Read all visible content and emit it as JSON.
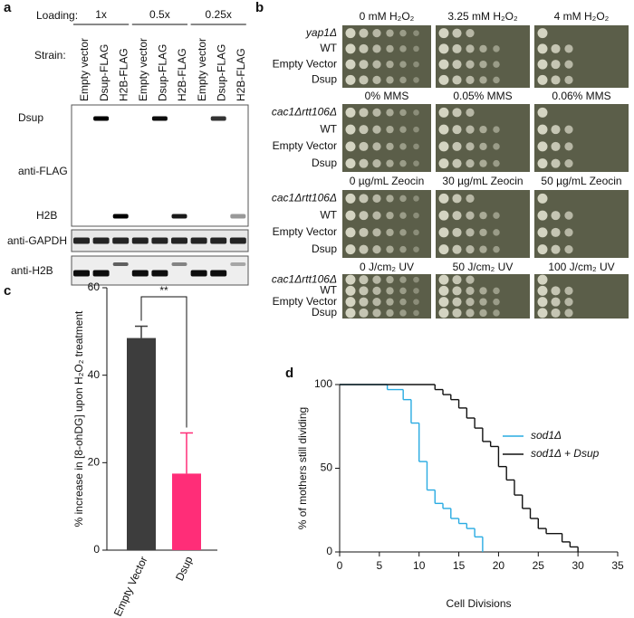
{
  "panel_a": {
    "label": "a",
    "loading_label": "Loading:",
    "loading": [
      "1x",
      "0.5x",
      "0.25x"
    ],
    "strain_label": "Strain:",
    "lanes": [
      "Empty vector",
      "Dsup-FLAG",
      "H2B-FLAG",
      "Empty vector",
      "Dsup-FLAG",
      "H2B-FLAG",
      "Empty vector",
      "Dsup-FLAG",
      "H2B-FLAG"
    ],
    "blots": [
      {
        "label": "anti-FLAG",
        "bands": [
          "Dsup",
          "H2B"
        ]
      },
      {
        "label": "anti-GAPDH"
      },
      {
        "label": "anti-H2B"
      }
    ]
  },
  "panel_b": {
    "label": "b",
    "sets": [
      {
        "columns": [
          "0 mM H₂O₂",
          "3.25 mM H₂O₂",
          "4 mM H₂O₂"
        ],
        "strains": [
          "yap1Δ",
          "WT",
          "Empty Vector",
          "Dsup"
        ]
      },
      {
        "columns": [
          "0% MMS",
          "0.05% MMS",
          "0.06% MMS"
        ],
        "strains": [
          "cac1Δrtt106Δ",
          "WT",
          "Empty Vector",
          "Dsup"
        ]
      },
      {
        "columns": [
          "0 µg/mL Zeocin",
          "30 µg/mL Zeocin",
          "50 µg/mL Zeocin"
        ],
        "strains": [
          "cac1Δrtt106Δ",
          "WT",
          "Empty Vector",
          "Dsup"
        ]
      },
      {
        "columns": [
          "0 J/cm₂ UV",
          "50 J/cm₂ UV",
          "100 J/cm₂ UV"
        ],
        "strains": [
          "cac1Δrtt106Δ",
          "WT",
          "Empty Vector",
          "Dsup"
        ]
      }
    ]
  },
  "chart_data": [
    {
      "panel": "c",
      "type": "bar",
      "ylabel": "% increase in [8-ohDG] upon H₂O₂ treatment",
      "categories": [
        "Empty Vector",
        "Dsup"
      ],
      "values": [
        48.5,
        17.5
      ],
      "errors": [
        2.7,
        9.3
      ],
      "colors": [
        "#3d3d3d",
        "#ff2d78"
      ],
      "ylim": [
        0,
        60
      ],
      "yticks": [
        0,
        20,
        40,
        60
      ],
      "annotation": "**"
    },
    {
      "panel": "d",
      "type": "line",
      "step": true,
      "xlabel": "Cell Divisions",
      "ylabel": "% of mothers still dividing",
      "xlim": [
        0,
        35
      ],
      "xticks": [
        0,
        5,
        10,
        15,
        20,
        25,
        30,
        35
      ],
      "ylim": [
        0,
        100
      ],
      "yticks": [
        0,
        50,
        100
      ],
      "series": [
        {
          "name": "sod1Δ",
          "color": "#29abe2",
          "x": [
            0,
            6,
            8,
            9,
            10,
            11,
            12,
            13,
            14,
            15,
            16,
            17,
            18
          ],
          "values": [
            100,
            97,
            91,
            77,
            54,
            37,
            29,
            26,
            20,
            17,
            14,
            9,
            0
          ]
        },
        {
          "name": "sod1Δ + Dsup",
          "color": "#111111",
          "x": [
            0,
            12,
            13,
            14,
            15,
            16,
            17,
            18,
            19,
            20,
            21,
            22,
            23,
            24,
            25,
            26,
            28,
            29,
            30
          ],
          "values": [
            100,
            97,
            94,
            91,
            86,
            80,
            74,
            66,
            63,
            51,
            43,
            34,
            26,
            20,
            14,
            11,
            6,
            3,
            0
          ]
        }
      ]
    }
  ]
}
